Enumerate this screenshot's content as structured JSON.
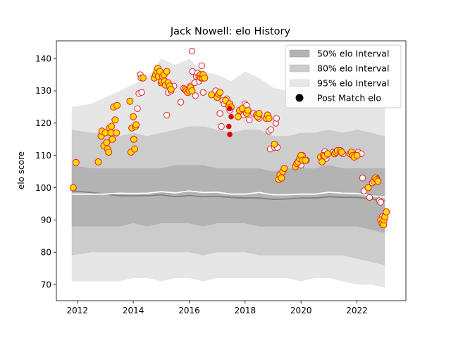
{
  "chart_data": {
    "type": "scatter",
    "title": "Jack Nowell: elo History",
    "xlabel": "",
    "ylabel": "elo score",
    "xlim": [
      2011.25,
      2023.75
    ],
    "ylim": [
      65,
      145.5
    ],
    "x_ticks": [
      2012,
      2014,
      2016,
      2018,
      2020,
      2022
    ],
    "y_ticks": [
      70,
      80,
      90,
      100,
      110,
      120,
      130,
      140
    ],
    "legend_position": "top-right",
    "grid": false,
    "colors": {
      "band50": "#b3b3b3",
      "band80": "#cccccc",
      "band95": "#e6e6e6",
      "median_line": "#808080",
      "mean_line": "#ffffff",
      "marker_fill": "#ffd700",
      "marker_edge": "#e02020",
      "marker_red": "#e00000"
    },
    "legend": [
      {
        "label": "50% elo Interval",
        "kind": "band50"
      },
      {
        "label": "80% elo Interval",
        "kind": "band80"
      },
      {
        "label": "95% elo Interval",
        "kind": "band95"
      },
      {
        "label": "Post Match elo",
        "kind": "dot"
      }
    ],
    "bands": {
      "x": [
        2011.8,
        2012.5,
        2013.0,
        2013.5,
        2014.0,
        2014.5,
        2015.0,
        2015.5,
        2016.0,
        2016.5,
        2017.0,
        2017.5,
        2018.0,
        2018.5,
        2019.0,
        2019.5,
        2020.0,
        2020.5,
        2021.0,
        2021.5,
        2022.0,
        2022.5,
        2023.0
      ],
      "p95_high": [
        125,
        126,
        128,
        130,
        132,
        134,
        140,
        138,
        140,
        136,
        135,
        133,
        136,
        134,
        131,
        130,
        134,
        133,
        133,
        133,
        132,
        129,
        128
      ],
      "p95_low": [
        71,
        71,
        71,
        71,
        72,
        72,
        71,
        72,
        72,
        71,
        72,
        72,
        72,
        72,
        72,
        72,
        71,
        72,
        72,
        71,
        70,
        70,
        69
      ],
      "p80_high": [
        118,
        117,
        117,
        116,
        117,
        116,
        117,
        118,
        119,
        119,
        118,
        117,
        118,
        118,
        116,
        116,
        117,
        117,
        118,
        117,
        118,
        117,
        116
      ],
      "p80_low": [
        79,
        80,
        80,
        80,
        80,
        80,
        80,
        80,
        80,
        79,
        80,
        80,
        80,
        79,
        79,
        79,
        79,
        79,
        79,
        79,
        78,
        77,
        76
      ],
      "p50_high": [
        107,
        106,
        106,
        106,
        106,
        106,
        106,
        107,
        107,
        107,
        106,
        106,
        106,
        106,
        105,
        106,
        106,
        106,
        107,
        106,
        106,
        106,
        106
      ],
      "p50_low": [
        88,
        88,
        88,
        88,
        89,
        88,
        89,
        89,
        89,
        88,
        89,
        89,
        89,
        88,
        88,
        88,
        88,
        88,
        88,
        88,
        88,
        87,
        86
      ]
    },
    "median_line": {
      "x": [
        2011.8,
        2012.5,
        2013.0,
        2013.5,
        2014.0,
        2014.5,
        2015.0,
        2015.5,
        2016.0,
        2016.5,
        2017.0,
        2017.5,
        2018.0,
        2018.5,
        2019.0,
        2019.5,
        2020.0,
        2020.5,
        2021.0,
        2021.5,
        2022.0,
        2022.5,
        2023.0
      ],
      "y": [
        99,
        98.5,
        98,
        97.5,
        97.5,
        97.5,
        97.8,
        97.2,
        97.6,
        97.2,
        97.3,
        97,
        96.8,
        96.8,
        96.4,
        96.5,
        96.8,
        96.8,
        97.2,
        97,
        97,
        96.5,
        96
      ]
    },
    "mean_line": {
      "x": [
        2011.8,
        2012.5,
        2013.0,
        2013.5,
        2014.0,
        2014.5,
        2015.0,
        2015.5,
        2016.0,
        2016.5,
        2017.0,
        2017.5,
        2018.0,
        2018.5,
        2019.0,
        2019.5,
        2020.0,
        2020.5,
        2021.0,
        2021.5,
        2022.0,
        2022.5,
        2023.0
      ],
      "y": [
        98,
        98,
        98,
        98.3,
        98.2,
        98.3,
        98.8,
        98.4,
        99,
        98.5,
        98.6,
        98,
        98,
        98.5,
        97.8,
        97.8,
        98,
        98,
        98.6,
        98.3,
        98.2,
        97.5,
        97
      ]
    },
    "points_filled": [
      [
        2011.85,
        100
      ],
      [
        2011.95,
        107.8
      ],
      [
        2012.75,
        108
      ],
      [
        2012.85,
        116
      ],
      [
        2012.88,
        117.5
      ],
      [
        2012.95,
        113
      ],
      [
        2013.0,
        117
      ],
      [
        2013.05,
        114
      ],
      [
        2013.08,
        112
      ],
      [
        2013.12,
        111
      ],
      [
        2013.15,
        118.5
      ],
      [
        2013.2,
        117
      ],
      [
        2013.22,
        119
      ],
      [
        2013.25,
        115
      ],
      [
        2013.3,
        125
      ],
      [
        2013.35,
        121
      ],
      [
        2013.4,
        117
      ],
      [
        2013.42,
        125.5
      ],
      [
        2013.88,
        126.8
      ],
      [
        2013.92,
        111
      ],
      [
        2013.95,
        118.5
      ],
      [
        2014.0,
        122
      ],
      [
        2014.02,
        115
      ],
      [
        2014.05,
        112
      ],
      [
        2014.08,
        119
      ],
      [
        2014.1,
        119.5
      ],
      [
        2014.35,
        134
      ],
      [
        2014.75,
        134
      ],
      [
        2014.8,
        135
      ],
      [
        2014.85,
        136
      ],
      [
        2014.88,
        137
      ],
      [
        2014.9,
        134.5
      ],
      [
        2014.95,
        136
      ],
      [
        2015.0,
        132.5
      ],
      [
        2015.02,
        133
      ],
      [
        2015.05,
        134.5
      ],
      [
        2015.1,
        135
      ],
      [
        2015.12,
        133
      ],
      [
        2015.15,
        131.8
      ],
      [
        2015.2,
        136
      ],
      [
        2015.25,
        132.5
      ],
      [
        2015.3,
        131.5
      ],
      [
        2015.35,
        130.5
      ],
      [
        2015.85,
        130.5
      ],
      [
        2015.9,
        130
      ],
      [
        2015.95,
        129.5
      ],
      [
        2016.0,
        130
      ],
      [
        2016.05,
        131
      ],
      [
        2016.1,
        130
      ],
      [
        2016.35,
        134.5
      ],
      [
        2016.4,
        135
      ],
      [
        2016.42,
        134
      ],
      [
        2016.48,
        134
      ],
      [
        2016.5,
        135
      ],
      [
        2016.55,
        134
      ],
      [
        2016.8,
        128.8
      ],
      [
        2017.0,
        128
      ],
      [
        2017.05,
        129
      ],
      [
        2017.1,
        129.5
      ],
      [
        2017.3,
        127
      ],
      [
        2017.4,
        125.5
      ],
      [
        2017.45,
        126
      ],
      [
        2017.5,
        125
      ],
      [
        2017.75,
        122
      ],
      [
        2017.8,
        124
      ],
      [
        2017.9,
        124.5
      ],
      [
        2018.05,
        123
      ],
      [
        2018.1,
        124
      ],
      [
        2018.4,
        122.5
      ],
      [
        2018.45,
        122
      ],
      [
        2018.5,
        123
      ],
      [
        2018.75,
        121.5
      ],
      [
        2018.8,
        122.5
      ],
      [
        2018.85,
        121.5
      ],
      [
        2019.05,
        113.5
      ],
      [
        2019.2,
        102.5
      ],
      [
        2019.25,
        104
      ],
      [
        2019.3,
        103
      ],
      [
        2019.35,
        105
      ],
      [
        2019.4,
        106
      ],
      [
        2019.8,
        106.5
      ],
      [
        2019.85,
        107.5
      ],
      [
        2019.9,
        108
      ],
      [
        2019.95,
        109
      ],
      [
        2020.0,
        110
      ],
      [
        2020.05,
        108.5
      ],
      [
        2020.15,
        108.5
      ],
      [
        2020.7,
        109.5
      ],
      [
        2020.75,
        108
      ],
      [
        2020.8,
        110
      ],
      [
        2020.85,
        109.8
      ],
      [
        2020.95,
        110.5
      ],
      [
        2021.2,
        110.5
      ],
      [
        2021.25,
        111
      ],
      [
        2021.3,
        111.5
      ],
      [
        2021.4,
        111.5
      ],
      [
        2021.45,
        111
      ],
      [
        2021.75,
        110.5
      ],
      [
        2021.8,
        111
      ],
      [
        2021.85,
        110
      ],
      [
        2021.9,
        109.5
      ],
      [
        2022.0,
        110
      ],
      [
        2022.4,
        100
      ],
      [
        2022.6,
        102
      ],
      [
        2022.65,
        103
      ],
      [
        2022.7,
        102.5
      ],
      [
        2022.75,
        102
      ],
      [
        2022.85,
        90
      ],
      [
        2022.9,
        89
      ],
      [
        2022.95,
        88.5
      ],
      [
        2022.97,
        90
      ],
      [
        2023.0,
        91
      ],
      [
        2023.05,
        92.5
      ]
    ],
    "points_hollow": [
      [
        2014.15,
        124.5
      ],
      [
        2014.2,
        129.2
      ],
      [
        2014.25,
        135
      ],
      [
        2014.28,
        134
      ],
      [
        2014.3,
        129.5
      ],
      [
        2015.2,
        122.5
      ],
      [
        2015.25,
        129.5
      ],
      [
        2015.35,
        130
      ],
      [
        2015.45,
        131.5
      ],
      [
        2015.7,
        126.5
      ],
      [
        2015.8,
        130.8
      ],
      [
        2016.0,
        130.5
      ],
      [
        2016.05,
        131.5
      ],
      [
        2016.1,
        142.3
      ],
      [
        2016.12,
        136
      ],
      [
        2016.2,
        132.5
      ],
      [
        2016.22,
        128.5
      ],
      [
        2016.25,
        134.5
      ],
      [
        2016.3,
        135.5
      ],
      [
        2016.35,
        133
      ],
      [
        2016.45,
        137.8
      ],
      [
        2016.5,
        129.5
      ],
      [
        2016.95,
        130
      ],
      [
        2017.1,
        123
      ],
      [
        2017.15,
        119
      ],
      [
        2017.2,
        127
      ],
      [
        2017.25,
        126
      ],
      [
        2017.35,
        127.5
      ],
      [
        2017.4,
        126
      ],
      [
        2017.45,
        124
      ],
      [
        2017.5,
        125
      ],
      [
        2017.85,
        123.5
      ],
      [
        2017.95,
        122.5
      ],
      [
        2018.0,
        126
      ],
      [
        2018.05,
        125.5
      ],
      [
        2018.15,
        121
      ],
      [
        2018.3,
        123
      ],
      [
        2018.5,
        121.5
      ],
      [
        2018.85,
        117.5
      ],
      [
        2018.9,
        112
      ],
      [
        2018.92,
        118
      ],
      [
        2019.05,
        112.5
      ],
      [
        2019.1,
        120
      ],
      [
        2019.12,
        121.5
      ],
      [
        2019.15,
        112.5
      ],
      [
        2019.3,
        103
      ],
      [
        2020.0,
        107
      ],
      [
        2020.05,
        110
      ],
      [
        2020.2,
        108.5
      ],
      [
        2020.85,
        111.2
      ],
      [
        2020.9,
        109
      ],
      [
        2021.15,
        111
      ],
      [
        2021.5,
        110.5
      ],
      [
        2022.05,
        111
      ],
      [
        2022.15,
        110.5
      ],
      [
        2022.2,
        103
      ],
      [
        2022.25,
        99
      ],
      [
        2022.45,
        97
      ],
      [
        2022.55,
        101.5
      ],
      [
        2022.7,
        103
      ],
      [
        2022.8,
        96
      ],
      [
        2022.85,
        95.5
      ],
      [
        2022.9,
        91
      ],
      [
        2022.95,
        88.5
      ]
    ],
    "points_red": [
      [
        2017.45,
        124.5
      ],
      [
        2017.5,
        122
      ],
      [
        2017.42,
        119
      ],
      [
        2017.45,
        116.5
      ]
    ]
  }
}
